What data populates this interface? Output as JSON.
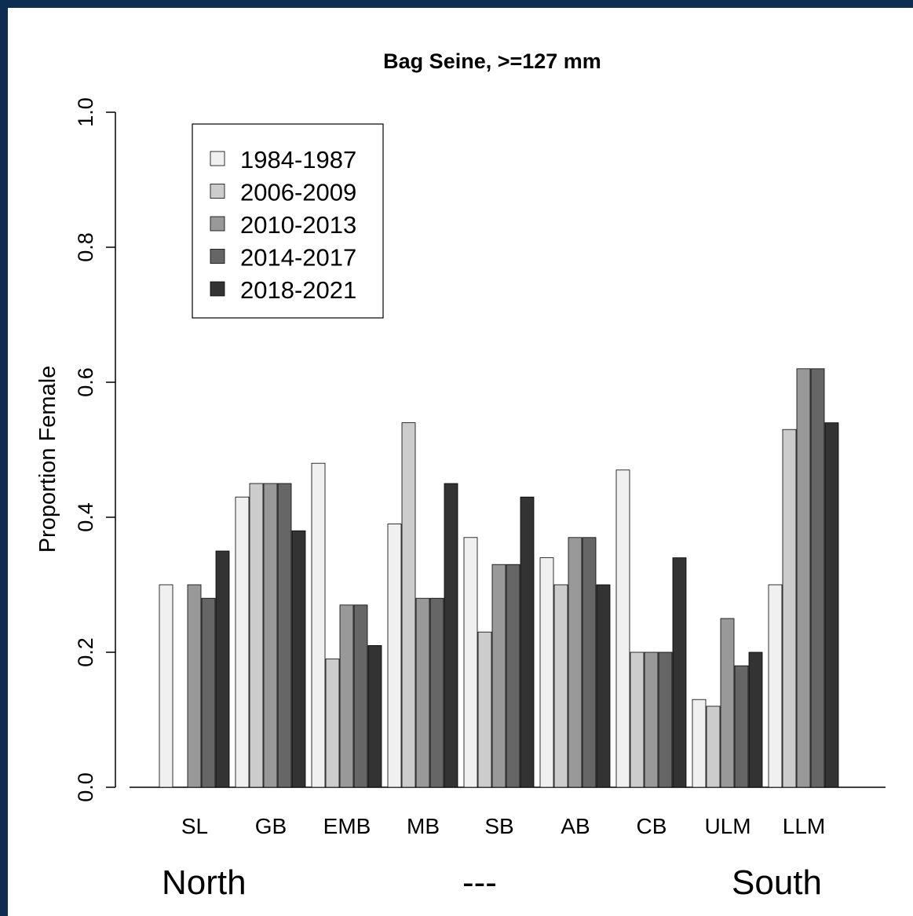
{
  "chart_data": {
    "type": "bar",
    "title": "Bag Seine, >=127 mm",
    "xlabel": "",
    "ylabel": "Proportion Female",
    "ylim": [
      0,
      1.0
    ],
    "yticks": [
      "0.0",
      "0.2",
      "0.4",
      "0.6",
      "0.8",
      "1.0"
    ],
    "categories": [
      "SL",
      "GB",
      "EMB",
      "MB",
      "SB",
      "AB",
      "CB",
      "ULM",
      "LLM"
    ],
    "series": [
      {
        "name": "1984-1987",
        "color": "#f0f0f0",
        "values": [
          0.3,
          0.43,
          0.48,
          0.39,
          0.37,
          0.34,
          0.47,
          0.13,
          0.3
        ]
      },
      {
        "name": "2006-2009",
        "color": "#cccccc",
        "values": [
          0.0,
          0.45,
          0.19,
          0.54,
          0.23,
          0.3,
          0.2,
          0.12,
          0.53
        ]
      },
      {
        "name": "2010-2013",
        "color": "#999999",
        "values": [
          0.3,
          0.45,
          0.27,
          0.28,
          0.33,
          0.37,
          0.2,
          0.25,
          0.62
        ]
      },
      {
        "name": "2014-2017",
        "color": "#666666",
        "values": [
          0.28,
          0.45,
          0.27,
          0.28,
          0.33,
          0.37,
          0.2,
          0.18,
          0.62
        ]
      },
      {
        "name": "2018-2021",
        "color": "#333333",
        "values": [
          0.35,
          0.38,
          0.21,
          0.45,
          0.43,
          0.3,
          0.34,
          0.2,
          0.54
        ]
      }
    ],
    "grid": false,
    "legend_position": "top-left"
  },
  "captions": {
    "left": "North",
    "middle": "---",
    "right": "South"
  }
}
